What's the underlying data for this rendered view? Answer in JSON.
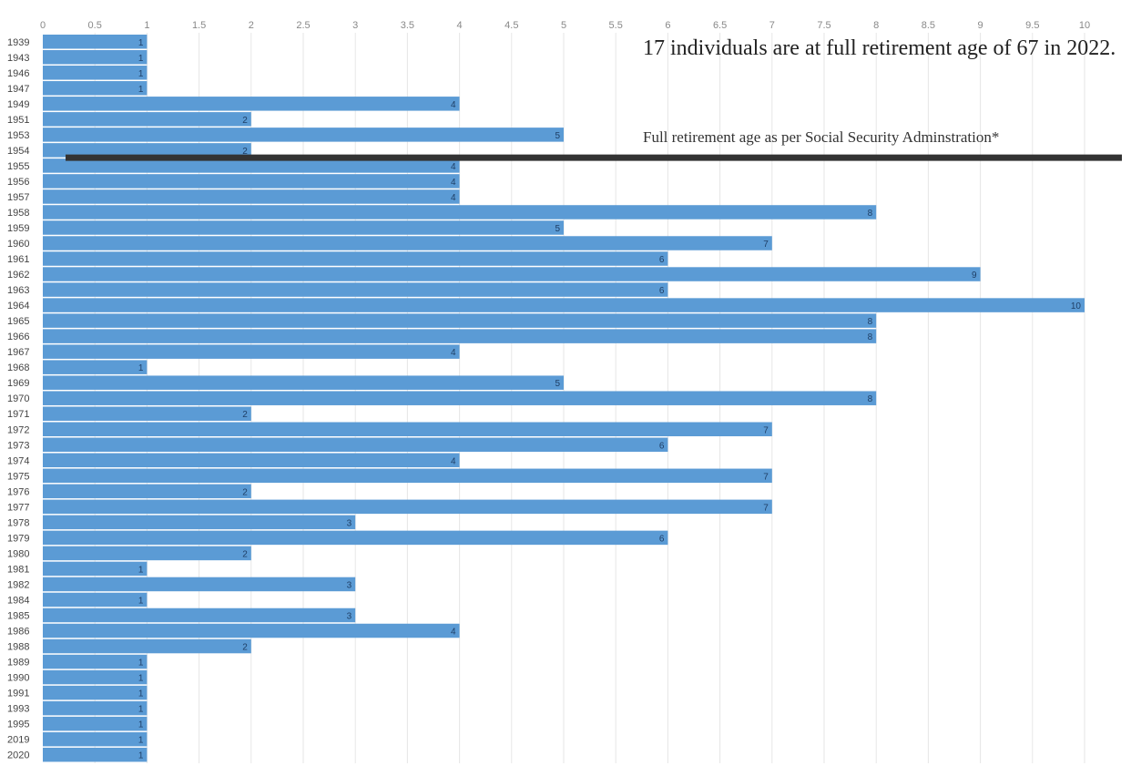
{
  "chart_data": {
    "type": "bar",
    "orientation": "horizontal",
    "categories": [
      "1939",
      "1943",
      "1946",
      "1947",
      "1949",
      "1951",
      "1953",
      "1954",
      "1955",
      "1956",
      "1957",
      "1958",
      "1959",
      "1960",
      "1961",
      "1962",
      "1963",
      "1964",
      "1965",
      "1966",
      "1967",
      "1968",
      "1969",
      "1970",
      "1971",
      "1972",
      "1973",
      "1974",
      "1975",
      "1976",
      "1977",
      "1978",
      "1979",
      "1980",
      "1981",
      "1982",
      "1984",
      "1985",
      "1986",
      "1988",
      "1989",
      "1990",
      "1991",
      "1993",
      "1995",
      "2019",
      "2020"
    ],
    "values": [
      1,
      1,
      1,
      1,
      4,
      2,
      5,
      2,
      4,
      4,
      4,
      8,
      5,
      7,
      6,
      9,
      6,
      10,
      8,
      8,
      4,
      1,
      5,
      8,
      2,
      7,
      6,
      4,
      7,
      2,
      7,
      3,
      6,
      2,
      1,
      3,
      1,
      3,
      4,
      2,
      1,
      1,
      1,
      1,
      1,
      1,
      1
    ],
    "xlim": [
      0,
      10
    ],
    "xticks": [
      "0",
      "0.5",
      "1",
      "1.5",
      "2",
      "2.5",
      "3",
      "3.5",
      "4",
      "4.5",
      "5",
      "5.5",
      "6",
      "6.5",
      "7",
      "7.5",
      "8",
      "8.5",
      "9",
      "9.5",
      "10"
    ],
    "grid": true,
    "bar_color": "#5b9bd5",
    "annotation": {
      "title": "17 individuals are at full retirement age of 67 in 2022.",
      "note": "Full retirement age as per Social Security Adminstration*",
      "cutoff_after_category": "1954",
      "line_color": "#333333"
    }
  }
}
